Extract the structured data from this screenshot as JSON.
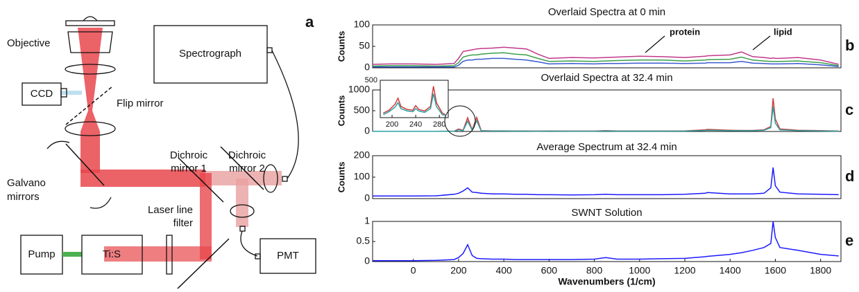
{
  "diagram": {
    "label": "a",
    "objective": "Objective",
    "ccd": "CCD",
    "flip_mirror": "Flip mirror",
    "spectrograph": "Spectrograph",
    "dichroic_1": [
      "Dichroic",
      "mirror 1"
    ],
    "dichroic_2": [
      "Dichroic",
      "mirror 2"
    ],
    "galvano": [
      "Galvano",
      "mirrors"
    ],
    "filter": [
      "Laser line",
      "filter"
    ],
    "pump": "Pump",
    "tis": "Ti:S",
    "pmt": "PMT"
  },
  "chart_data": [
    {
      "type": "line",
      "panel": "b",
      "title": "Overlaid Spectra at 0 min",
      "y_label": "Counts",
      "annotations": [
        "protein",
        "lipid"
      ],
      "x": [
        -180,
        -100,
        0,
        100,
        180,
        200,
        220,
        240,
        260,
        280,
        300,
        350,
        400,
        450,
        500,
        550,
        600,
        700,
        800,
        850,
        900,
        1000,
        1100,
        1200,
        1290,
        1300,
        1400,
        1450,
        1500,
        1550,
        1580,
        1590,
        1600,
        1620,
        1700,
        1800,
        1880
      ],
      "series": [
        {
          "color": "#c0388a",
          "values": [
            8,
            9,
            9,
            8,
            10,
            22,
            38,
            40,
            42,
            44,
            45,
            46,
            48,
            46,
            44,
            32,
            22,
            24,
            23,
            24,
            25,
            27,
            26,
            24,
            27,
            28,
            30,
            37,
            26,
            24,
            22,
            23,
            22,
            22,
            24,
            18,
            8
          ]
        },
        {
          "color": "#3aa04a",
          "values": [
            4,
            5,
            5,
            4,
            5,
            12,
            25,
            28,
            30,
            30,
            32,
            34,
            35,
            32,
            30,
            22,
            15,
            16,
            15,
            16,
            17,
            18,
            18,
            16,
            18,
            19,
            20,
            25,
            18,
            16,
            15,
            15,
            15,
            15,
            16,
            12,
            5
          ]
        },
        {
          "color": "#3a5ad0",
          "values": [
            2,
            2,
            2,
            2,
            2,
            6,
            15,
            18,
            18,
            20,
            20,
            22,
            22,
            20,
            18,
            14,
            9,
            10,
            9,
            10,
            10,
            11,
            11,
            10,
            11,
            12,
            12,
            15,
            11,
            10,
            9,
            9,
            9,
            9,
            10,
            7,
            3
          ]
        }
      ],
      "xlim": [
        -180,
        1890
      ],
      "ylim": [
        0,
        100
      ],
      "yticks": [
        0,
        50,
        100
      ]
    },
    {
      "type": "line",
      "panel": "c",
      "title": "Overlaid Spectra at 32.4 min",
      "y_label": "Counts",
      "x": [
        -180,
        -100,
        0,
        100,
        180,
        200,
        220,
        240,
        260,
        280,
        300,
        350,
        400,
        450,
        500,
        550,
        600,
        700,
        800,
        850,
        900,
        1000,
        1100,
        1200,
        1290,
        1300,
        1400,
        1450,
        1500,
        1550,
        1580,
        1590,
        1600,
        1620,
        1700,
        1800,
        1880
      ],
      "series": [
        {
          "color": "#d03a3a",
          "values": [
            5,
            5,
            5,
            5,
            8,
            60,
            30,
            330,
            40,
            340,
            20,
            15,
            15,
            12,
            12,
            10,
            12,
            10,
            10,
            20,
            12,
            12,
            12,
            15,
            40,
            50,
            30,
            25,
            25,
            40,
            120,
            800,
            300,
            60,
            30,
            20,
            10
          ]
        },
        {
          "color": "#2aa0a0",
          "values": [
            3,
            3,
            3,
            3,
            5,
            40,
            20,
            250,
            30,
            260,
            12,
            10,
            10,
            8,
            8,
            7,
            8,
            7,
            7,
            12,
            8,
            8,
            8,
            10,
            25,
            30,
            20,
            18,
            18,
            30,
            90,
            600,
            200,
            40,
            20,
            12,
            6
          ]
        }
      ],
      "xlim": [
        -180,
        1890
      ],
      "ylim": [
        0,
        1000
      ],
      "yticks": [
        0,
        500,
        1000
      ]
    },
    {
      "type": "line",
      "x": [
        185,
        195,
        205,
        210,
        215,
        225,
        235,
        240,
        245,
        255,
        265,
        270,
        275,
        285,
        290
      ],
      "series": [
        {
          "color": "#d03a3a",
          "values": [
            60,
            100,
            180,
            260,
            150,
            110,
            100,
            160,
            110,
            90,
            150,
            420,
            200,
            60,
            40
          ]
        },
        {
          "color": "#2aa0a0",
          "values": [
            40,
            80,
            140,
            200,
            120,
            90,
            80,
            120,
            90,
            70,
            120,
            320,
            150,
            40,
            30
          ]
        }
      ],
      "xlim": [
        180,
        295
      ],
      "ylim": [
        0,
        500
      ],
      "yticks": [
        500
      ],
      "xticks": [
        200,
        240,
        280
      ]
    },
    {
      "type": "line",
      "panel": "d",
      "title": "Average Spectrum at 32.4 min",
      "y_label": "Counts",
      "x": [
        -180,
        -100,
        0,
        100,
        180,
        200,
        220,
        240,
        260,
        280,
        300,
        350,
        400,
        450,
        500,
        550,
        600,
        700,
        800,
        850,
        900,
        1000,
        1100,
        1200,
        1290,
        1300,
        1400,
        1450,
        1500,
        1550,
        1580,
        1590,
        1600,
        1620,
        1700,
        1800,
        1880
      ],
      "series": [
        {
          "color": "#1a1aff",
          "values": [
            12,
            12,
            12,
            13,
            20,
            25,
            35,
            50,
            30,
            28,
            25,
            22,
            22,
            20,
            20,
            18,
            18,
            17,
            18,
            20,
            18,
            18,
            18,
            20,
            25,
            28,
            22,
            22,
            22,
            25,
            50,
            145,
            60,
            30,
            22,
            20,
            18
          ]
        }
      ],
      "xlim": [
        -180,
        1890
      ],
      "ylim": [
        0,
        200
      ],
      "yticks": [
        0,
        100,
        200
      ]
    },
    {
      "type": "line",
      "panel": "e",
      "title": "SWNT Solution",
      "x_label": "Wavenumbers (1/cm)",
      "x": [
        -180,
        -100,
        0,
        100,
        180,
        200,
        220,
        240,
        260,
        280,
        300,
        350,
        400,
        450,
        500,
        550,
        600,
        700,
        800,
        850,
        900,
        1000,
        1100,
        1200,
        1290,
        1300,
        1400,
        1450,
        1500,
        1550,
        1580,
        1590,
        1600,
        1620,
        1700,
        1800,
        1880
      ],
      "series": [
        {
          "color": "#1a1aff",
          "values": [
            0.02,
            0.02,
            0.02,
            0.03,
            0.05,
            0.1,
            0.2,
            0.42,
            0.15,
            0.08,
            0.07,
            0.06,
            0.06,
            0.05,
            0.05,
            0.05,
            0.05,
            0.05,
            0.06,
            0.1,
            0.06,
            0.06,
            0.07,
            0.08,
            0.12,
            0.13,
            0.18,
            0.22,
            0.28,
            0.35,
            0.45,
            1.0,
            0.6,
            0.35,
            0.28,
            0.18,
            0.14
          ]
        }
      ],
      "xlim": [
        -180,
        1890
      ],
      "ylim": [
        0,
        1
      ],
      "yticks": [
        0,
        0.5,
        1
      ],
      "xticks": [
        0,
        200,
        400,
        600,
        800,
        1000,
        1200,
        1400,
        1600,
        1800
      ]
    }
  ]
}
